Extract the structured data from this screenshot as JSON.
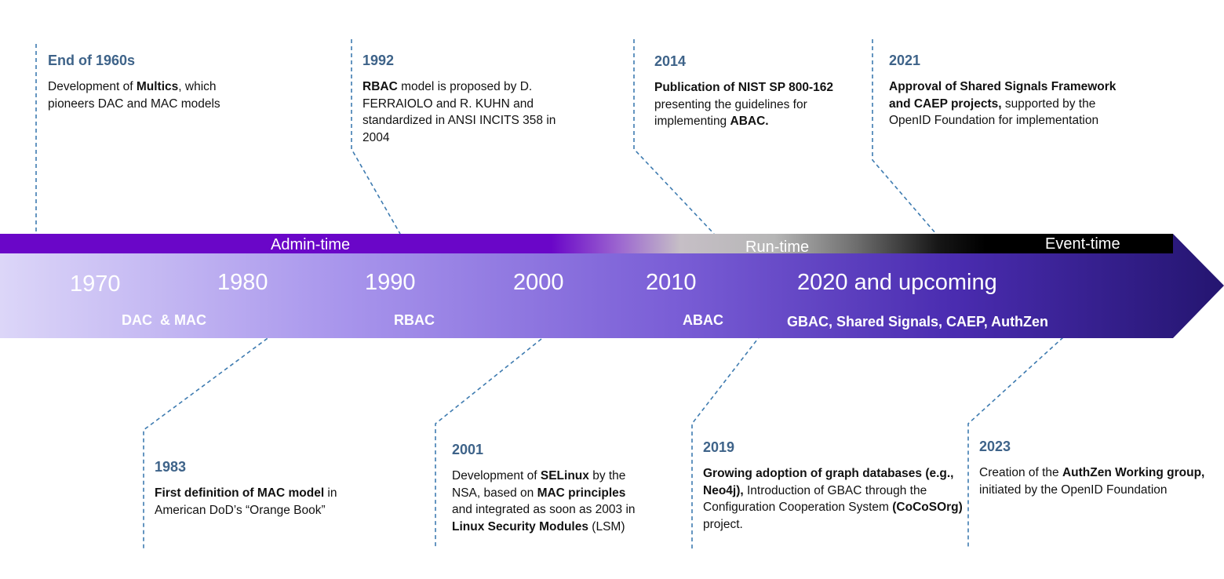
{
  "bands": [
    {
      "label": "Admin-time"
    },
    {
      "label": "Run-time"
    },
    {
      "label": "Event-time"
    }
  ],
  "decades": [
    {
      "label": "1970"
    },
    {
      "label": "1980"
    },
    {
      "label": "1990"
    },
    {
      "label": "2000"
    },
    {
      "label": "2010"
    },
    {
      "label": "2020 and upcoming"
    }
  ],
  "models": [
    {
      "label": "DAC  & MAC"
    },
    {
      "label": "RBAC"
    },
    {
      "label": "ABAC"
    },
    {
      "label": "GBAC, Shared Signals, CAEP, AuthZen"
    }
  ],
  "events_top": [
    {
      "year": "End of 1960s",
      "parts": [
        {
          "t": "Development of "
        },
        {
          "t": "Multics",
          "b": true
        },
        {
          "t": ", which pioneers DAC and MAC models"
        }
      ]
    },
    {
      "year": "1992",
      "parts": [
        {
          "t": "RBAC",
          "b": true
        },
        {
          "t": " model is proposed by D. FERRAIOLO and R. KUHN and standardized in ANSI INCITS 358 in 2004"
        }
      ]
    },
    {
      "year": "2014",
      "parts": [
        {
          "t": "Publication of NIST SP 800-162",
          "b": true
        },
        {
          "t": " presenting the guidelines for implementing "
        },
        {
          "t": "ABAC.",
          "b": true
        }
      ]
    },
    {
      "year": "2021",
      "parts": [
        {
          "t": "Approval of Shared Signals Framework and CAEP projects,",
          "b": true
        },
        {
          "t": " supported by the OpenID Foundation for implementation"
        }
      ]
    }
  ],
  "events_bottom": [
    {
      "year": "1983",
      "parts": [
        {
          "t": "First definition of MAC model",
          "b": true
        },
        {
          "t": " in American DoD’s “Orange Book”"
        }
      ]
    },
    {
      "year": "2001",
      "parts": [
        {
          "t": "Development of "
        },
        {
          "t": "SELinux",
          "b": true
        },
        {
          "t": " by the NSA, based on "
        },
        {
          "t": "MAC principles",
          "b": true
        },
        {
          "t": " and integrated as soon as 2003 in "
        },
        {
          "t": "Linux Security Modules",
          "b": true
        },
        {
          "t": " (LSM)"
        }
      ]
    },
    {
      "year": "2019",
      "parts": [
        {
          "t": "Growing adoption of graph databases (e.g., Neo4j),",
          "b": true
        },
        {
          "t": " Introduction of GBAC through the Configuration Cooperation System "
        },
        {
          "t": "(CoCoSOrg)",
          "b": true
        },
        {
          "t": " project."
        }
      ]
    },
    {
      "year": "2023",
      "parts": [
        {
          "t": "Creation of the "
        },
        {
          "t": "AuthZen Working group,",
          "b": true
        },
        {
          "t": " initiated by the OpenID Foundation"
        }
      ]
    }
  ],
  "colors": {
    "year_text": "#3e6389",
    "connector": "#3e7bb0",
    "admin_band": "#6a06c8",
    "event_band": "#000000",
    "arrow_start": "#dcd6f8",
    "arrow_mid": "#8c72e0",
    "arrow_end": "#241570"
  }
}
